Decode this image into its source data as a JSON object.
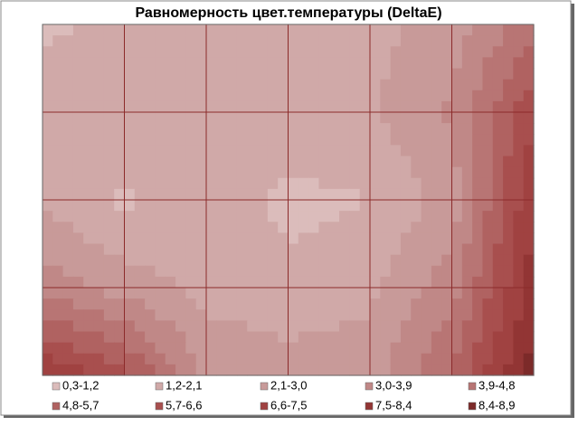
{
  "chart_data": {
    "type": "contour",
    "title": "Равномерность цвет.температуры (DeltaE)",
    "z": [
      [
        1.0,
        1.5,
        1.8,
        1.6,
        1.8,
        2.5,
        4.5
      ],
      [
        1.7,
        1.9,
        1.9,
        1.9,
        2.0,
        3.2,
        6.5
      ],
      [
        1.9,
        1.0,
        1.9,
        0.9,
        1.2,
        2.5,
        7.5
      ],
      [
        3.5,
        2.6,
        1.8,
        1.5,
        1.9,
        3.5,
        8.0
      ],
      [
        7.5,
        6.0,
        2.8,
        2.5,
        2.6,
        5.0,
        8.9
      ]
    ],
    "series": [
      {
        "name": "0,3-1,2",
        "color": "#dbbcbb"
      },
      {
        "name": "1,2-2,1",
        "color": "#d0a9a8"
      },
      {
        "name": "2,1-3,0",
        "color": "#c89a99"
      },
      {
        "name": "3,0-3,9",
        "color": "#c08887"
      },
      {
        "name": "3,9-4,8",
        "color": "#b87574"
      },
      {
        "name": "4,8-5,7",
        "color": "#b06261"
      },
      {
        "name": "5,7-6,6",
        "color": "#a84f4e"
      },
      {
        "name": "6,6-7,5",
        "color": "#a04241"
      },
      {
        "name": "7,5-8,4",
        "color": "#923534"
      },
      {
        "name": "8,4-8,9",
        "color": "#7c2a29"
      }
    ],
    "grid": true
  }
}
